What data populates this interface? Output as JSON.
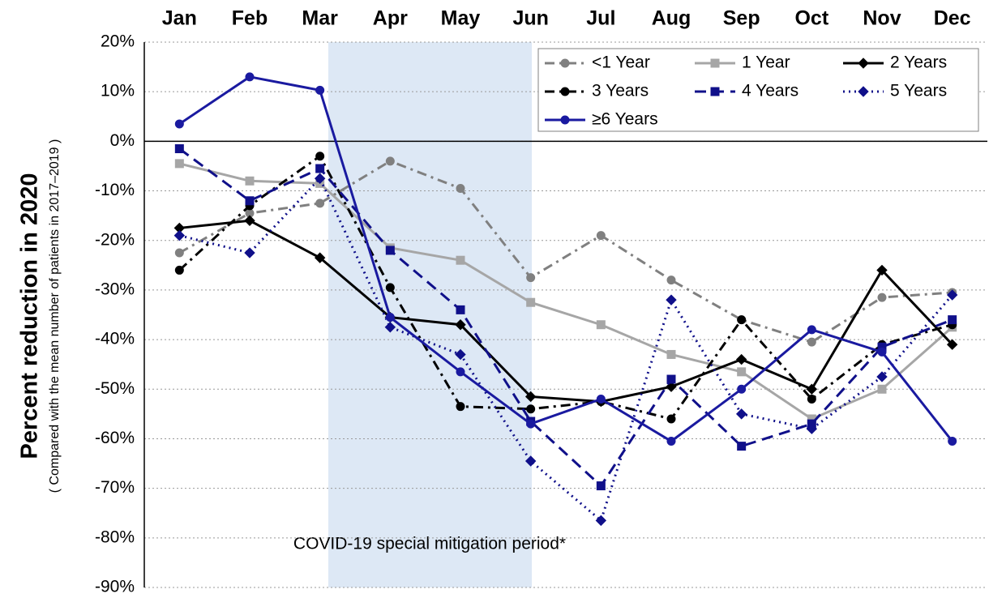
{
  "chart_data": {
    "type": "line",
    "y_label": "Percent reduction in 2020",
    "y_sublabel": "( Compared with the mean number of patients in 2017–2019 )",
    "annotation": "COVID-19 special mitigation period*",
    "categories": [
      "Jan",
      "Feb",
      "Mar",
      "Apr",
      "May",
      "Jun",
      "Jul",
      "Aug",
      "Sep",
      "Oct",
      "Nov",
      "Dec"
    ],
    "ylim": [
      -90,
      20
    ],
    "yticks": [
      {
        "value": 20,
        "label": "20%"
      },
      {
        "value": 10,
        "label": "10%"
      },
      {
        "value": 0,
        "label": "0%"
      },
      {
        "value": -10,
        "label": "-10%"
      },
      {
        "value": -20,
        "label": "-20%"
      },
      {
        "value": -30,
        "label": "-30%"
      },
      {
        "value": -40,
        "label": "-40%"
      },
      {
        "value": -50,
        "label": "-50%"
      },
      {
        "value": -60,
        "label": "-60%"
      },
      {
        "value": -70,
        "label": "-70%"
      },
      {
        "value": -80,
        "label": "-80%"
      },
      {
        "value": -90,
        "label": "-90%"
      }
    ],
    "grid": true,
    "legend": "upper right",
    "series": [
      {
        "name": "<1 Year",
        "color": "#808080",
        "line_style": "dashdot",
        "marker": "circle",
        "values": [
          -22.5,
          -14.5,
          -12.5,
          -4,
          -9.5,
          -27.5,
          -19,
          -28,
          -36,
          -40.5,
          -31.5,
          -30.5
        ]
      },
      {
        "name": "1 Year",
        "color": "#a6a6a6",
        "line_style": "solid",
        "marker": "square",
        "values": [
          -4.5,
          -8,
          -8.5,
          -21.5,
          -24,
          -32.5,
          -37,
          -43,
          -46.5,
          -56,
          -50,
          -37.5
        ]
      },
      {
        "name": "2 Years",
        "color": "#000000",
        "line_style": "solid",
        "marker": "diamond",
        "values": [
          -17.5,
          -16,
          -23.5,
          -35.5,
          -37,
          -51.5,
          -52.5,
          -49.5,
          -44,
          -50,
          -26,
          -41
        ]
      },
      {
        "name": "3 Years",
        "color": "#000000",
        "line_style": "dashdot",
        "marker": "circle",
        "values": [
          -26,
          -13,
          -3,
          -29.5,
          -53.5,
          -54,
          -52.5,
          -56,
          -36,
          -52,
          -41,
          -37
        ]
      },
      {
        "name": "4 Years",
        "color": "#10108a",
        "line_style": "dashed",
        "marker": "square",
        "values": [
          -1.5,
          -12,
          -5.5,
          -22,
          -34,
          -56.5,
          -69.5,
          -48,
          -61.5,
          -57,
          -41.5,
          -36
        ]
      },
      {
        "name": "5 Years",
        "color": "#10108a",
        "line_style": "dotted",
        "marker": "diamond",
        "values": [
          -19,
          -22.5,
          -7.5,
          -37.5,
          -43,
          -64.5,
          -76.5,
          -32,
          -55,
          -58,
          -47.5,
          -31
        ]
      },
      {
        "name": "≥6 Years",
        "color": "#1a1aa0",
        "line_style": "solid",
        "marker": "circle",
        "values": [
          3.5,
          13,
          10.3,
          -35.5,
          -46.5,
          -57,
          -52,
          -60.5,
          -50,
          -38,
          -42.5,
          -60.5
        ]
      }
    ]
  }
}
